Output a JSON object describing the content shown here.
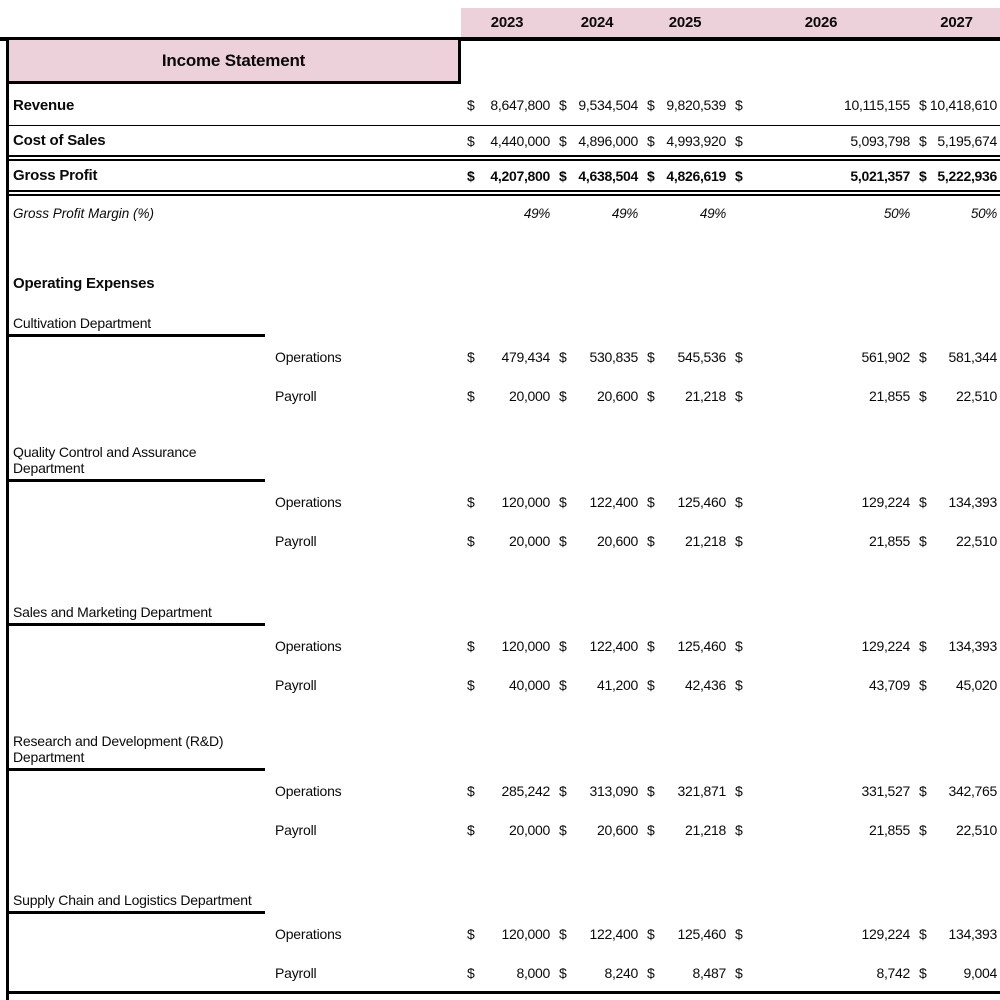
{
  "title": "Income Statement",
  "years": [
    "2023",
    "2024",
    "2025",
    "2026",
    "2027"
  ],
  "currency_symbol": "$",
  "summary_rows": [
    {
      "label": "Revenue",
      "values": [
        "8,647,800",
        "9,534,504",
        "9,820,539",
        "10,115,155",
        "10,418,610"
      ]
    },
    {
      "label": "Cost of Sales",
      "values": [
        "4,440,000",
        "4,896,000",
        "4,993,920",
        "5,093,798",
        "5,195,674"
      ]
    },
    {
      "label": "Gross Profit",
      "values": [
        "4,207,800",
        "4,638,504",
        "4,826,619",
        "5,021,357",
        "5,222,936"
      ]
    },
    {
      "label": "Gross Profit Margin (%)",
      "values": [
        "49%",
        "49%",
        "49%",
        "50%",
        "50%"
      ]
    }
  ],
  "operating_expenses": {
    "heading": "Operating Expenses",
    "departments": [
      {
        "name": "Cultivation Department",
        "items": [
          {
            "label": "Operations",
            "values": [
              "479,434",
              "530,835",
              "545,536",
              "561,902",
              "581,344"
            ]
          },
          {
            "label": "Payroll",
            "values": [
              "20,000",
              "20,600",
              "21,218",
              "21,855",
              "22,510"
            ]
          }
        ]
      },
      {
        "name": "Quality Control and Assurance Department",
        "items": [
          {
            "label": "Operations",
            "values": [
              "120,000",
              "122,400",
              "125,460",
              "129,224",
              "134,393"
            ]
          },
          {
            "label": "Payroll",
            "values": [
              "20,000",
              "20,600",
              "21,218",
              "21,855",
              "22,510"
            ]
          }
        ]
      },
      {
        "name": "Sales and Marketing Department",
        "items": [
          {
            "label": "Operations",
            "values": [
              "120,000",
              "122,400",
              "125,460",
              "129,224",
              "134,393"
            ]
          },
          {
            "label": "Payroll",
            "values": [
              "40,000",
              "41,200",
              "42,436",
              "43,709",
              "45,020"
            ]
          }
        ]
      },
      {
        "name": "Research and Development (R&D) Department",
        "items": [
          {
            "label": "Operations",
            "values": [
              "285,242",
              "313,090",
              "321,871",
              "331,527",
              "342,765"
            ]
          },
          {
            "label": "Payroll",
            "values": [
              "20,000",
              "20,600",
              "21,218",
              "21,855",
              "22,510"
            ]
          }
        ]
      },
      {
        "name": "Supply Chain and Logistics Department",
        "items": [
          {
            "label": "Operations",
            "values": [
              "120,000",
              "122,400",
              "125,460",
              "129,224",
              "134,393"
            ]
          },
          {
            "label": "Payroll",
            "values": [
              "8,000",
              "8,240",
              "8,487",
              "8,742",
              "9,004"
            ]
          }
        ]
      }
    ]
  },
  "colors": {
    "header_pink": "#ecd1db",
    "border_black": "#000000",
    "background": "#ffffff"
  }
}
